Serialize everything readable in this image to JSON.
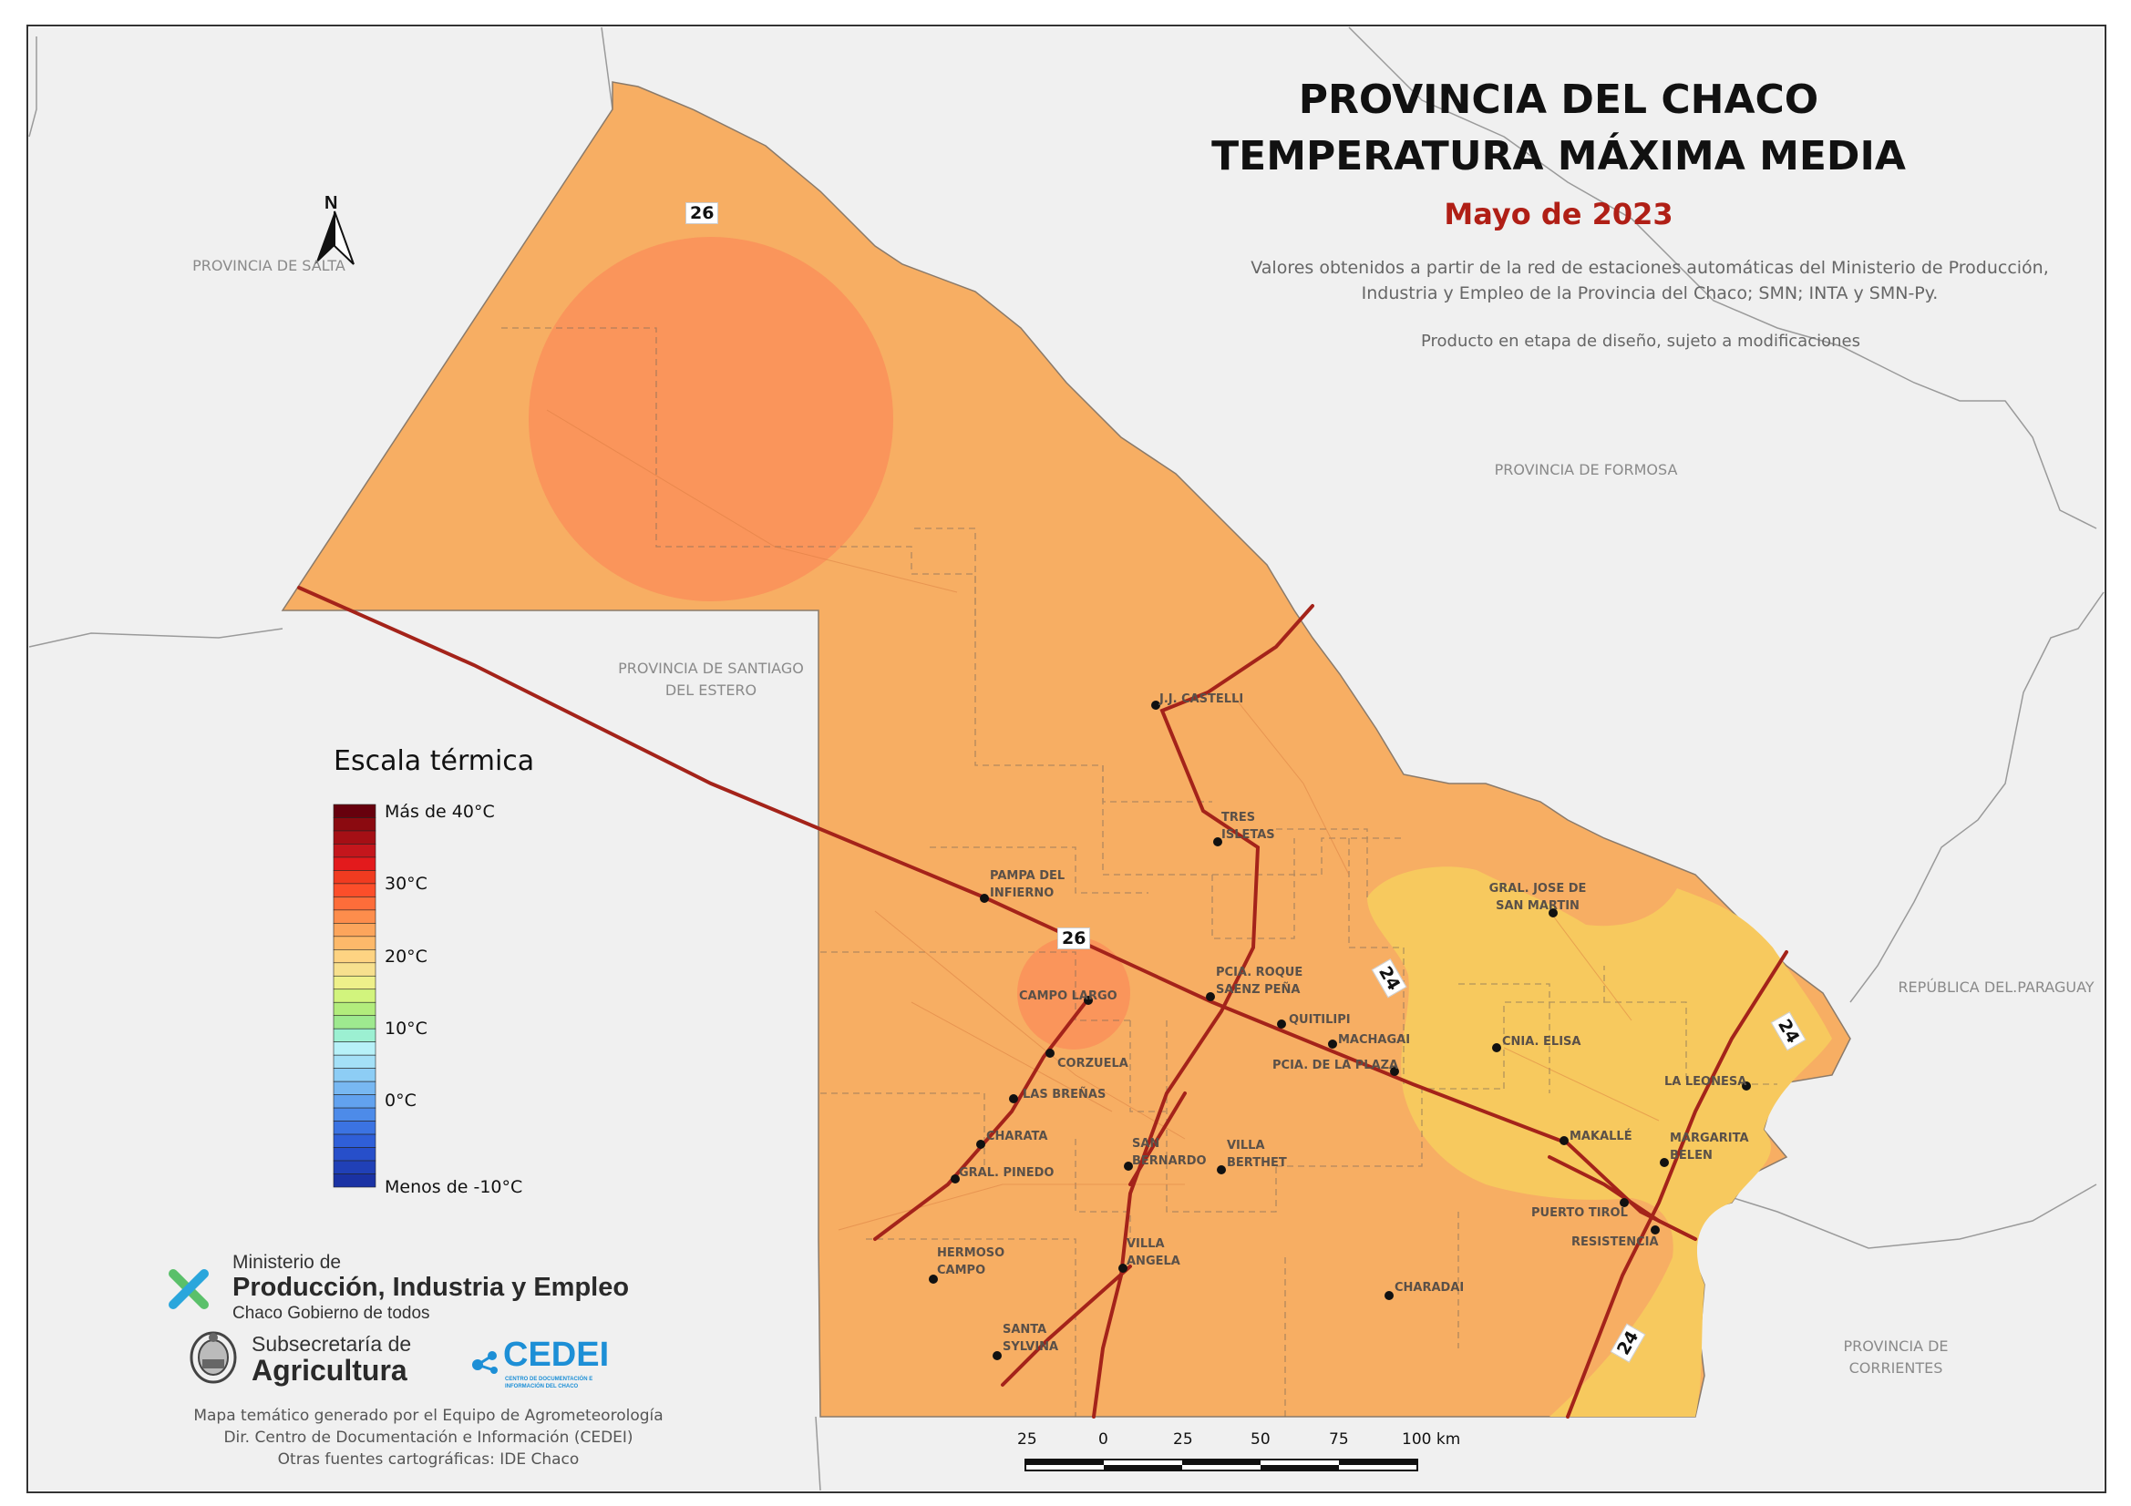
{
  "title": {
    "line1": "PROVINCIA DEL CHACO",
    "line2": "TEMPERATURA MÁXIMA MEDIA",
    "period": "Mayo de 2023"
  },
  "source_note": "Valores obtenidos a partir de la red de estaciones automáticas del Ministerio de Producción, Industria y Empleo de la Provincia del Chaco; SMN; INTA y SMN-Py.",
  "draft_note": "Producto en etapa de diseño, sujeto a modificaciones",
  "north_label": "N",
  "regions": {
    "salta": "PROVINCIA DE SALTA",
    "formosa": "PROVINCIA DE FORMOSA",
    "santiago": "PROVINCIA DE SANTIAGO DEL ESTERO",
    "paraguay": "REPÚBLICA DEL.PARAGUAY",
    "corrientes": "PROVINCIA DE CORRIENTES"
  },
  "routes": [
    "26",
    "26",
    "24",
    "24",
    "24"
  ],
  "cities": [
    {
      "name": "J.J. CASTELLI"
    },
    {
      "name": "TRES ISLETAS"
    },
    {
      "name": "PAMPA DEL INFIERNO"
    },
    {
      "name": "GRAL. JOSE DE SAN MARTIN"
    },
    {
      "name": "PCIA. ROQUE SAENZ PEÑA"
    },
    {
      "name": "CAMPO LARGO"
    },
    {
      "name": "QUITILIPI"
    },
    {
      "name": "MACHAGAI"
    },
    {
      "name": "PCIA. DE LA PLAZA"
    },
    {
      "name": "CNIA. ELISA"
    },
    {
      "name": "CORZUELA"
    },
    {
      "name": "LAS BREÑAS"
    },
    {
      "name": "LA LEONESA"
    },
    {
      "name": "CHARATA"
    },
    {
      "name": "MAKALLÉ"
    },
    {
      "name": "MARGARITA BELEN"
    },
    {
      "name": "SAN BERNARDO"
    },
    {
      "name": "VILLA BERTHET"
    },
    {
      "name": "GRAL. PINEDO"
    },
    {
      "name": "PUERTO TIROL"
    },
    {
      "name": "RESISTENCIA"
    },
    {
      "name": "HERMOSO CAMPO"
    },
    {
      "name": "VILLA ANGELA"
    },
    {
      "name": "CHARADAI"
    },
    {
      "name": "SANTA SYLVINA"
    }
  ],
  "legend": {
    "title": "Escala térmica",
    "labels": [
      "Más de 40°C",
      "30°C",
      "20°C",
      "10°C",
      "0°C",
      "Menos de -10°C"
    ],
    "colors": [
      "#67000d",
      "#8b0a10",
      "#a50f15",
      "#c4161c",
      "#e31a1c",
      "#f03b20",
      "#fc4e2a",
      "#fd6d3a",
      "#fd8d4c",
      "#fca55c",
      "#fdb96a",
      "#fed382",
      "#f7e08e",
      "#eef08a",
      "#d2f47d",
      "#b2ec7c",
      "#9ee98f",
      "#9cf0d2",
      "#b7f1f8",
      "#a4e0f7",
      "#8dcdf5",
      "#78b8f2",
      "#62a2ef",
      "#4d8be9",
      "#3b73e2",
      "#2f5fd8",
      "#274fca",
      "#2040b7",
      "#1a32a4"
    ]
  },
  "logos": {
    "ministry_top": "Ministerio de",
    "ministry_name": "Producción, Industria y Empleo",
    "ministry_sub": "Chaco Gobierno de todos",
    "subsec_top": "Subsecretaría de",
    "subsec_name": "Agricultura",
    "cedei": "CEDEI",
    "cedei_sub": "CENTRO DE DOCUMENTACIÓN E INFORMACIÓN DEL CHACO"
  },
  "credits": {
    "line1": "Mapa temático generado por el Equipo de Agrometeorología",
    "line2": "Dir. Centro de Documentación e Información (CEDEI)",
    "line3": "Otras fuentes cartográficas: IDE Chaco"
  },
  "scale_bar": {
    "labels": [
      "25",
      "0",
      "25",
      "50",
      "75",
      "100 km"
    ]
  },
  "colors": {
    "background": "#f0f0f0",
    "zone_26_28": "#f7ae63",
    "zone_above_28": "#f9925a",
    "zone_24_26": "#f7c95e",
    "roads": "#a4231a"
  }
}
